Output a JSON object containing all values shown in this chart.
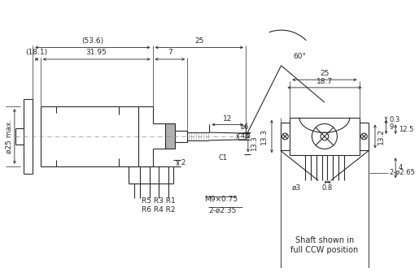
{
  "bg_color": "#ffffff",
  "line_color": "#2a2a2a",
  "dim_color": "#2a2a2a",
  "gray_color": "#999999",
  "annotations": {
    "top_dim_536": "(53.6)",
    "top_dim_25_left": "25",
    "top_dim_181": "(18.1)",
    "top_dim_3195": "31.95",
    "top_dim_7": "7",
    "left_dim": "ø25 max.",
    "dim_12": "12",
    "dim_45": "4.5",
    "dim_phi6": "ø6",
    "dim_133": "13.3",
    "dim_c1": "C1",
    "dim_m9": "M9×0.75",
    "dim_2phi235": "2-ø2.35",
    "dim_2": "2",
    "labels_r1": "R5 R3 R1",
    "labels_r2": "R6 R4 R2",
    "right_dim_60": "60°",
    "right_dim_25": "25",
    "right_dim_187": "18.7",
    "right_dim_132": "13.2",
    "right_dim_03": "0.3",
    "right_dim_9": "9",
    "right_dim_125": "12.5",
    "right_dim_4": "4",
    "right_dim_08": "0.8",
    "right_dim_2phi265": "2-ø2.65",
    "right_dim_phi3": "ø3",
    "note_line1": "Shaft shown in",
    "note_line2": "full CCW position"
  }
}
